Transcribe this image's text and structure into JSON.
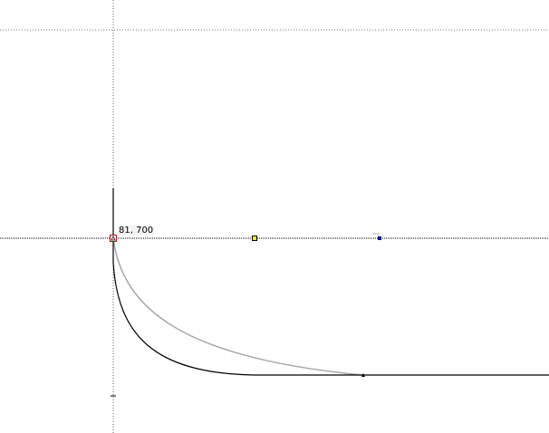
{
  "editor": {
    "anchor_coordinate_label": "81, 700",
    "colors": {
      "primary_curve": "#000000",
      "secondary_curve": "#a8a8a8",
      "selected_anchor_border": "#d00000",
      "control_handle": "#ffff00",
      "endpoint_handle": "#0000ff"
    }
  }
}
